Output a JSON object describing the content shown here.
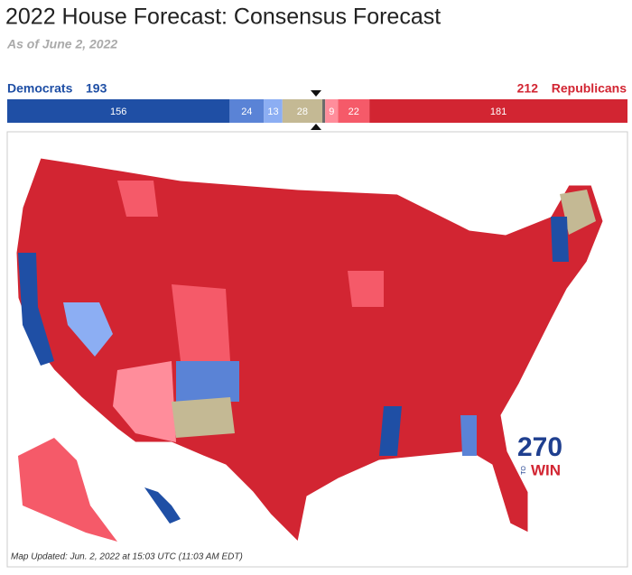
{
  "header": {
    "title": "2022 House Forecast: Consensus Forecast",
    "subtitle": "As of June 2, 2022"
  },
  "summary": {
    "left_name": "Democrats",
    "left_total": 193,
    "right_total": 212,
    "right_name": "Republicans",
    "segments": [
      {
        "value": 156,
        "color": "#1f4fa5",
        "labeled": true
      },
      {
        "value": 24,
        "color": "#5a83d6",
        "labeled": true
      },
      {
        "value": 13,
        "color": "#8caef3",
        "labeled": true
      },
      {
        "value": 28,
        "color": "#c4b994",
        "labeled": true
      },
      {
        "value": 2,
        "color": "#6b6b6b",
        "labeled": false
      },
      {
        "value": 9,
        "color": "#ff8d9b",
        "labeled": true
      },
      {
        "value": 22,
        "color": "#f55a69",
        "labeled": true
      },
      {
        "value": 181,
        "color": "#d22532",
        "labeled": true
      }
    ]
  },
  "map": {
    "logo_number": "270",
    "logo_small": "TO",
    "logo_word": "WIN",
    "note": "Map Updated: Jun. 2, 2022 at 15:03 UTC (11:03 AM EDT)"
  }
}
